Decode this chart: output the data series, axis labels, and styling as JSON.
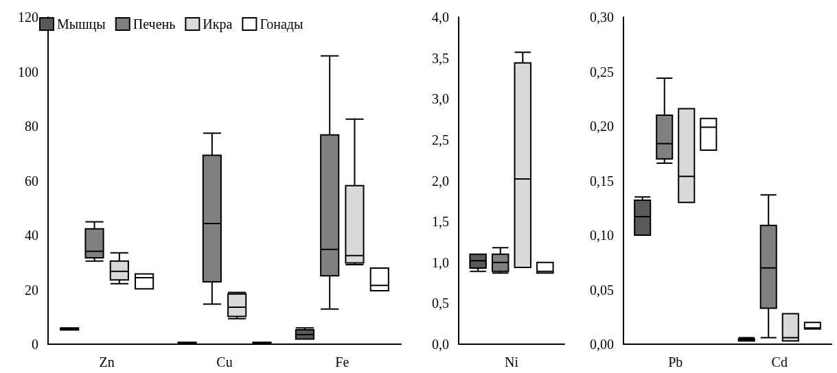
{
  "chart_data": [
    {
      "type": "box",
      "categories": [
        "Zn",
        "Cu",
        "Fe"
      ],
      "ylim": [
        0,
        120
      ],
      "yticks": [
        0,
        20,
        40,
        60,
        80,
        100,
        120
      ],
      "grid": false,
      "legend": "top left",
      "series": [
        {
          "name": "Мышцы",
          "color": "#595959",
          "boxes": [
            {
              "low": 5.2,
              "q1": 5.2,
              "median": 5.6,
              "q3": 6.0,
              "high": 6.0
            },
            {
              "low": 0.2,
              "q1": 0.2,
              "median": 0.5,
              "q3": 0.7,
              "high": 0.7
            },
            {
              "low": 1.9,
              "q1": 1.9,
              "median": 3.5,
              "q3": 5.3,
              "high": 6.0
            }
          ]
        },
        {
          "name": "Печень",
          "color": "#808080",
          "boxes": [
            {
              "low": 30.5,
              "q1": 31.7,
              "median": 34.1,
              "q3": 42.3,
              "high": 44.9
            },
            {
              "low": 14.7,
              "q1": 22.9,
              "median": 44.3,
              "q3": 69.3,
              "high": 77.4
            },
            {
              "low": 12.9,
              "q1": 25.1,
              "median": 34.8,
              "q3": 76.8,
              "high": 105.8
            }
          ]
        },
        {
          "name": "Икра",
          "color": "#d9d9d9",
          "boxes": [
            {
              "low": 22.2,
              "q1": 23.6,
              "median": 26.7,
              "q3": 30.5,
              "high": 33.5
            },
            {
              "low": 9.4,
              "q1": 10.2,
              "median": 13.6,
              "q3": 18.4,
              "high": 19.0
            },
            {
              "low": 29.2,
              "q1": 29.8,
              "median": 32.5,
              "q3": 58.2,
              "high": 82.6
            }
          ]
        },
        {
          "name": "Гонады",
          "color": "#ffffff",
          "boxes": [
            {
              "low": 20.3,
              "q1": 20.3,
              "median": 24.4,
              "q3": 25.8,
              "high": 25.8
            },
            {
              "low": 0.2,
              "q1": 0.2,
              "median": 0.5,
              "q3": 0.7,
              "high": 0.7
            },
            {
              "low": 19.6,
              "q1": 19.6,
              "median": 21.6,
              "q3": 27.9,
              "high": 27.9
            }
          ]
        }
      ]
    },
    {
      "type": "box",
      "categories": [
        "Ni"
      ],
      "ylim": [
        0,
        4
      ],
      "yticks": [
        {
          "value": 0,
          "label": "0,0"
        },
        {
          "value": 0.5,
          "label": "0,5"
        },
        {
          "value": 1,
          "label": "1,0"
        },
        {
          "value": 1.5,
          "label": "1,5"
        },
        {
          "value": 2,
          "label": "2,0"
        },
        {
          "value": 2.5,
          "label": "2,5"
        },
        {
          "value": 3,
          "label": "3,0"
        },
        {
          "value": 3.5,
          "label": "3,5"
        },
        {
          "value": 4,
          "label": "4,0"
        }
      ],
      "grid": false,
      "legend": false,
      "series": [
        {
          "color": "#595959",
          "boxes": [
            {
              "low": 0.89,
              "q1": 0.93,
              "median": 1.02,
              "q3": 1.1,
              "high": 1.1
            }
          ]
        },
        {
          "color": "#808080",
          "boxes": [
            {
              "low": 0.87,
              "q1": 0.89,
              "median": 1.0,
              "q3": 1.1,
              "high": 1.18
            }
          ]
        },
        {
          "color": "#d9d9d9",
          "boxes": [
            {
              "low": 0.94,
              "q1": 0.94,
              "median": 2.02,
              "q3": 3.44,
              "high": 3.57
            }
          ]
        },
        {
          "color": "#ffffff",
          "boxes": [
            {
              "low": 0.87,
              "q1": 0.87,
              "median": 0.89,
              "q3": 1.0,
              "high": 1.0
            }
          ]
        }
      ]
    },
    {
      "type": "box",
      "categories": [
        "Pb",
        "Cd"
      ],
      "ylim": [
        0,
        0.3
      ],
      "yticks": [
        {
          "value": 0,
          "label": "0,00"
        },
        {
          "value": 0.05,
          "label": "0,05"
        },
        {
          "value": 0.1,
          "label": "0,10"
        },
        {
          "value": 0.15,
          "label": "0,15"
        },
        {
          "value": 0.2,
          "label": "0,20"
        },
        {
          "value": 0.25,
          "label": "0,25"
        },
        {
          "value": 0.3,
          "label": "0,30"
        }
      ],
      "grid": false,
      "legend": false,
      "series": [
        {
          "color": "#595959",
          "boxes": [
            {
              "low": 0.1,
              "q1": 0.1,
              "median": 0.117,
              "q3": 0.132,
              "high": 0.135
            },
            {
              "low": 0.003,
              "q1": 0.003,
              "median": 0.004,
              "q3": 0.005,
              "high": 0.006
            }
          ]
        },
        {
          "color": "#808080",
          "boxes": [
            {
              "low": 0.166,
              "q1": 0.17,
              "median": 0.184,
              "q3": 0.21,
              "high": 0.244
            },
            {
              "low": 0.006,
              "q1": 0.033,
              "median": 0.07,
              "q3": 0.109,
              "high": 0.137
            }
          ]
        },
        {
          "color": "#d9d9d9",
          "boxes": [
            {
              "low": 0.13,
              "q1": 0.13,
              "median": 0.154,
              "q3": 0.216,
              "high": 0.216
            },
            {
              "low": 0.003,
              "q1": 0.003,
              "median": 0.006,
              "q3": 0.028,
              "high": 0.028
            }
          ]
        },
        {
          "color": "#ffffff",
          "boxes": [
            {
              "low": 0.178,
              "q1": 0.178,
              "median": 0.199,
              "q3": 0.207,
              "high": 0.207
            },
            {
              "low": 0.014,
              "q1": 0.014,
              "median": 0.015,
              "q3": 0.02,
              "high": 0.02
            }
          ]
        }
      ]
    }
  ]
}
